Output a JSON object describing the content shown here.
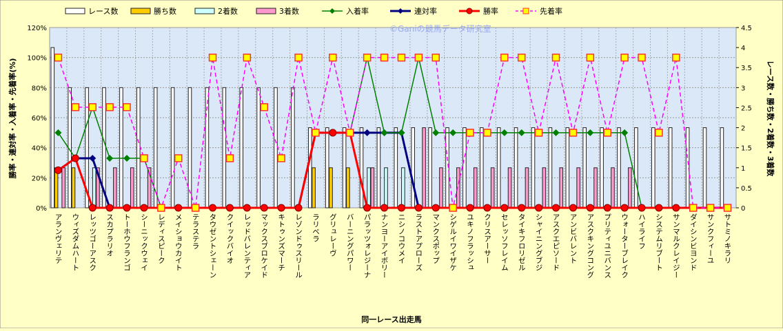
{
  "chart_data": {
    "type": "bar+line",
    "watermark": "©Ganiの競馬データ研究室",
    "xlabel": "同一レース出走馬",
    "ylabel_left": "勝率・連対率・入着率・先着率(%)",
    "ylabel_right": "レース数・勝ち数・2着数・3着数",
    "ylim_left": [
      0,
      120
    ],
    "ylim_right": [
      0,
      4.5
    ],
    "yticks_left": [
      "0%",
      "20%",
      "40%",
      "60%",
      "80%",
      "100%",
      "120%"
    ],
    "yticks_right": [
      "0",
      "0.5",
      "1",
      "1.5",
      "2",
      "2.5",
      "3",
      "3.5",
      "4",
      "4.5"
    ],
    "grid": true,
    "legend_position": "top",
    "categories": [
      "アランヴェリテ",
      "ウィズダムハート",
      "レッツゴーアスク",
      "スカプラリオ",
      "トーホウフランゴ",
      "シーニックウェイ",
      "レディスピーク",
      "メイショウカイト",
      "テラステラ",
      "タウゼントシェーン",
      "クイックバイオ",
      "レッドバレンティア",
      "マックスブロケイド",
      "キトゥンズマーチ",
      "レゾンドゥスリール",
      "ラリベラ",
      "グリュレーヴ",
      "バーニングパワー",
      "パラッツォレジーナ",
      "ナンヨーアイボリー",
      "ニシノコウメイ",
      "ラストアプローズ",
      "マンクスポップ",
      "シゲルイワイザケ",
      "ユキノフラッシュ",
      "クリスアーサー",
      "セレッソフレイム",
      "タイキフロリゼル",
      "シャイニングブジ",
      "アスクエピソード",
      "アンビバレント",
      "アスクキングコング",
      "プリティユニバンス",
      "ウォーターブレイク",
      "ハイライフ",
      "システムリブート",
      "サンマルクレイジー",
      "ダイシンビヨンド",
      "サンクフィーユ",
      "サトミノキラリ"
    ],
    "bar_series": [
      {
        "name": "レース数",
        "color": "#ffffff",
        "values": [
          4,
          3,
          3,
          3,
          3,
          3,
          3,
          3,
          3,
          3,
          3,
          3,
          3,
          3,
          3,
          2,
          2,
          2,
          2,
          2,
          2,
          2,
          2,
          2,
          2,
          2,
          2,
          2,
          2,
          2,
          2,
          2,
          2,
          2,
          2,
          2,
          2,
          2,
          2,
          2
        ]
      },
      {
        "name": "勝ち数",
        "color": "#ffcc00",
        "values": [
          1,
          1,
          0,
          0,
          0,
          0,
          0,
          0,
          0,
          0,
          0,
          0,
          0,
          0,
          0,
          1,
          1,
          1,
          0,
          0,
          0,
          0,
          0,
          0,
          0,
          0,
          0,
          0,
          0,
          0,
          0,
          0,
          0,
          0,
          0,
          0,
          0,
          0,
          0,
          0
        ]
      },
      {
        "name": "2着数",
        "color": "#ccffff",
        "values": [
          0,
          0,
          1,
          0,
          0,
          0,
          0,
          0,
          0,
          0,
          0,
          0,
          0,
          0,
          0,
          0,
          0,
          0,
          1,
          1,
          1,
          0,
          0,
          0,
          0,
          0,
          0,
          0,
          0,
          0,
          0,
          0,
          0,
          0,
          0,
          0,
          0,
          0,
          0,
          0
        ]
      },
      {
        "name": "3着数",
        "color": "#ff99cc",
        "values": [
          1,
          0,
          1,
          1,
          1,
          1,
          0,
          0,
          0,
          0,
          0,
          0,
          0,
          0,
          0,
          0,
          0,
          0,
          1,
          0,
          0,
          2,
          1,
          1,
          1,
          1,
          1,
          1,
          1,
          1,
          1,
          1,
          1,
          1,
          0,
          0,
          0,
          0,
          0,
          0
        ]
      }
    ],
    "line_series": [
      {
        "name": "入着率",
        "color": "#008000",
        "marker": "diamond",
        "values": [
          50,
          33,
          67,
          33,
          33,
          33,
          0,
          0,
          0,
          0,
          0,
          0,
          0,
          0,
          0,
          50,
          50,
          50,
          100,
          50,
          50,
          100,
          50,
          50,
          50,
          50,
          50,
          50,
          50,
          50,
          50,
          50,
          50,
          50,
          0,
          0,
          0,
          0,
          0,
          0
        ]
      },
      {
        "name": "連対率",
        "color": "#000080",
        "marker": "diamond",
        "values": [
          25,
          33,
          33,
          0,
          0,
          0,
          0,
          0,
          0,
          0,
          0,
          0,
          0,
          0,
          0,
          50,
          50,
          50,
          50,
          50,
          50,
          0,
          0,
          0,
          0,
          0,
          0,
          0,
          0,
          0,
          0,
          0,
          0,
          0,
          0,
          0,
          0,
          0,
          0,
          0
        ]
      },
      {
        "name": "勝率",
        "color": "#ff0000",
        "marker": "circle",
        "values": [
          25,
          33,
          0,
          0,
          0,
          0,
          0,
          0,
          0,
          0,
          0,
          0,
          0,
          0,
          0,
          50,
          50,
          50,
          0,
          0,
          0,
          0,
          0,
          0,
          0,
          0,
          0,
          0,
          0,
          0,
          0,
          0,
          0,
          0,
          0,
          0,
          0,
          0,
          0,
          0
        ]
      },
      {
        "name": "先着率",
        "color": "#ff00ff",
        "marker": "square",
        "values": [
          100,
          67,
          67,
          67,
          67,
          33,
          0,
          33,
          0,
          100,
          33,
          100,
          67,
          33,
          100,
          50,
          100,
          50,
          100,
          100,
          100,
          100,
          100,
          0,
          50,
          50,
          100,
          100,
          50,
          100,
          50,
          100,
          50,
          100,
          100,
          50,
          100,
          0,
          0,
          0
        ]
      }
    ]
  }
}
